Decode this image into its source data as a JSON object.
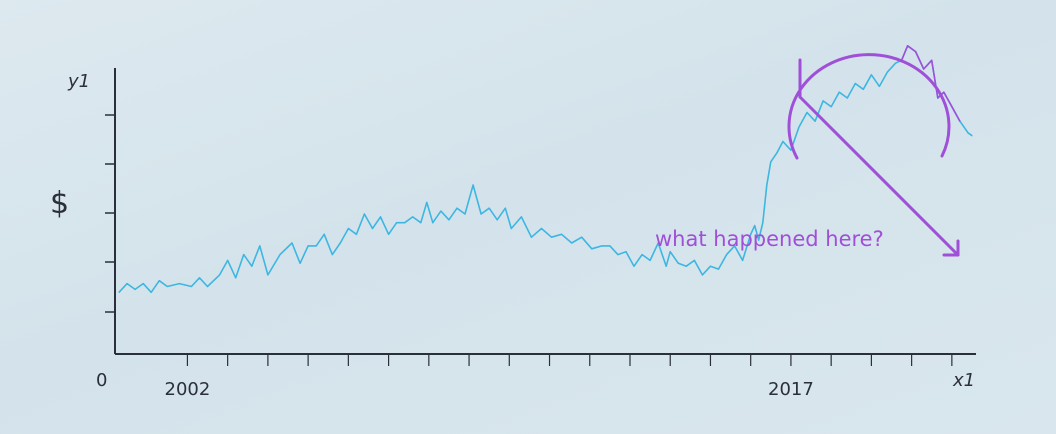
{
  "chart_data": {
    "type": "line",
    "ylabel": "y1",
    "xlabel": "x1",
    "y_unit_symbol": "$",
    "origin_label": "0",
    "x_tick_labels": [
      {
        "label": "2002",
        "x": 2002
      },
      {
        "label": "2017",
        "x": 2017
      }
    ],
    "xlim": [
      2000.2,
      2021.6
    ],
    "ylim": [
      0,
      100
    ],
    "grid": false,
    "series": [
      {
        "color": "#3db6e2",
        "points": [
          [
            2000.3,
            13
          ],
          [
            2000.5,
            16
          ],
          [
            2000.7,
            14
          ],
          [
            2000.9,
            16
          ],
          [
            2001.1,
            13
          ],
          [
            2001.3,
            17
          ],
          [
            2001.5,
            15
          ],
          [
            2001.8,
            16
          ],
          [
            2002.1,
            15
          ],
          [
            2002.3,
            18
          ],
          [
            2002.5,
            15
          ],
          [
            2002.8,
            19
          ],
          [
            2003.0,
            24
          ],
          [
            2003.2,
            18
          ],
          [
            2003.4,
            26
          ],
          [
            2003.6,
            22
          ],
          [
            2003.8,
            29
          ],
          [
            2004.0,
            19
          ],
          [
            2004.3,
            26
          ],
          [
            2004.6,
            30
          ],
          [
            2004.8,
            23
          ],
          [
            2005.0,
            29
          ],
          [
            2005.2,
            29
          ],
          [
            2005.4,
            33
          ],
          [
            2005.6,
            26
          ],
          [
            2005.8,
            30
          ],
          [
            2006.0,
            35
          ],
          [
            2006.2,
            33
          ],
          [
            2006.4,
            40
          ],
          [
            2006.6,
            35
          ],
          [
            2006.8,
            39
          ],
          [
            2007.0,
            33
          ],
          [
            2007.2,
            37
          ],
          [
            2007.4,
            37
          ],
          [
            2007.6,
            39
          ],
          [
            2007.8,
            37
          ],
          [
            2007.95,
            44
          ],
          [
            2008.1,
            37
          ],
          [
            2008.3,
            41
          ],
          [
            2008.5,
            38
          ],
          [
            2008.7,
            42
          ],
          [
            2008.9,
            40
          ],
          [
            2009.1,
            50
          ],
          [
            2009.3,
            40
          ],
          [
            2009.5,
            42
          ],
          [
            2009.7,
            38
          ],
          [
            2009.9,
            42
          ],
          [
            2010.05,
            35
          ],
          [
            2010.3,
            39
          ],
          [
            2010.55,
            32
          ],
          [
            2010.8,
            35
          ],
          [
            2011.05,
            32
          ],
          [
            2011.3,
            33
          ],
          [
            2011.55,
            30
          ],
          [
            2011.8,
            32
          ],
          [
            2012.05,
            28
          ],
          [
            2012.3,
            29
          ],
          [
            2012.5,
            29
          ],
          [
            2012.7,
            26
          ],
          [
            2012.9,
            27
          ],
          [
            2013.1,
            22
          ],
          [
            2013.3,
            26
          ],
          [
            2013.5,
            24
          ],
          [
            2013.7,
            30
          ],
          [
            2013.9,
            22
          ],
          [
            2014.0,
            27
          ],
          [
            2014.2,
            23
          ],
          [
            2014.4,
            22
          ],
          [
            2014.6,
            24
          ],
          [
            2014.8,
            19
          ],
          [
            2015.0,
            22
          ],
          [
            2015.2,
            21
          ],
          [
            2015.4,
            26
          ],
          [
            2015.6,
            29
          ],
          [
            2015.8,
            24
          ],
          [
            2016.0,
            33
          ],
          [
            2016.1,
            36
          ],
          [
            2016.2,
            31
          ],
          [
            2016.3,
            37
          ],
          [
            2016.4,
            50
          ],
          [
            2016.5,
            58
          ],
          [
            2016.65,
            61
          ],
          [
            2016.8,
            65
          ],
          [
            2017.0,
            62
          ],
          [
            2017.2,
            70
          ],
          [
            2017.4,
            75
          ],
          [
            2017.6,
            72
          ],
          [
            2017.8,
            79
          ],
          [
            2018.0,
            77
          ],
          [
            2018.2,
            82
          ],
          [
            2018.4,
            80
          ],
          [
            2018.6,
            85
          ],
          [
            2018.8,
            83
          ],
          [
            2019.0,
            88
          ],
          [
            2019.2,
            84
          ],
          [
            2019.4,
            89
          ],
          [
            2019.6,
            92
          ],
          [
            2019.75,
            93
          ],
          [
            2019.9,
            98
          ],
          [
            2020.1,
            96
          ],
          [
            2020.3,
            90
          ],
          [
            2020.5,
            93
          ],
          [
            2020.65,
            80
          ],
          [
            2020.8,
            82
          ],
          [
            2021.0,
            77
          ],
          [
            2021.2,
            72
          ],
          [
            2021.4,
            68
          ],
          [
            2021.5,
            67
          ]
        ]
      },
      {
        "color": "#a04fd8",
        "points": [
          [
            2019.75,
            93
          ],
          [
            2019.9,
            98
          ],
          [
            2020.1,
            96
          ],
          [
            2020.3,
            90
          ],
          [
            2020.5,
            93
          ],
          [
            2020.65,
            80
          ],
          [
            2020.8,
            82
          ],
          [
            2021.0,
            77
          ],
          [
            2021.2,
            72
          ]
        ]
      }
    ],
    "annotation_text": "what happened here?",
    "annotation_color": "#a04fd8",
    "axis_color": "#2b2f3a"
  }
}
